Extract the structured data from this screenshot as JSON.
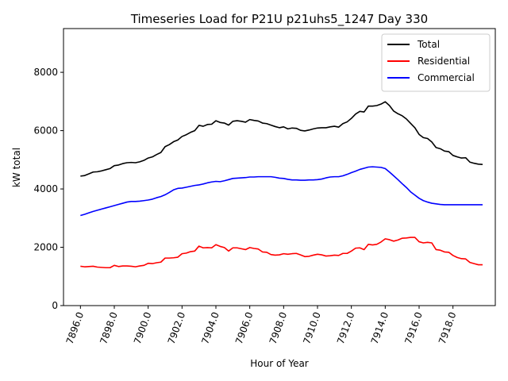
{
  "chart_data": {
    "type": "line",
    "title": "Timeseries Load for P21U p21uhs5_1247  Day 330",
    "xlabel": "Hour of Year",
    "ylabel": "kW total",
    "xlim": [
      7895.0,
      7920.5
    ],
    "ylim": [
      0,
      9500
    ],
    "x_ticks": [
      7896.0,
      7898.0,
      7900.0,
      7902.0,
      7904.0,
      7906.0,
      7908.0,
      7910.0,
      7912.0,
      7914.0,
      7916.0,
      7918.0
    ],
    "x_tick_labels": [
      "7896.0",
      "7898.0",
      "7900.0",
      "7902.0",
      "7904.0",
      "7906.0",
      "7908.0",
      "7910.0",
      "7912.0",
      "7914.0",
      "7916.0",
      "7918.0"
    ],
    "y_ticks": [
      0,
      2000,
      4000,
      6000,
      8000
    ],
    "y_tick_labels": [
      "0",
      "2000",
      "4000",
      "6000",
      "8000"
    ],
    "legend_position": "top-right",
    "x": [
      7896.0,
      7896.25,
      7896.5,
      7896.75,
      7897.0,
      7897.25,
      7897.5,
      7897.75,
      7898.0,
      7898.25,
      7898.5,
      7898.75,
      7899.0,
      7899.25,
      7899.5,
      7899.75,
      7900.0,
      7900.25,
      7900.5,
      7900.75,
      7901.0,
      7901.25,
      7901.5,
      7901.75,
      7902.0,
      7902.25,
      7902.5,
      7902.75,
      7903.0,
      7903.25,
      7903.5,
      7903.75,
      7904.0,
      7904.25,
      7904.5,
      7904.75,
      7905.0,
      7905.25,
      7905.5,
      7905.75,
      7906.0,
      7906.25,
      7906.5,
      7906.75,
      7907.0,
      7907.25,
      7907.5,
      7907.75,
      7908.0,
      7908.25,
      7908.5,
      7908.75,
      7909.0,
      7909.25,
      7909.5,
      7909.75,
      7910.0,
      7910.25,
      7910.5,
      7910.75,
      7911.0,
      7911.25,
      7911.5,
      7911.75,
      7912.0,
      7912.25,
      7912.5,
      7912.75,
      7913.0,
      7913.25,
      7913.5,
      7913.75,
      7914.0,
      7914.25,
      7914.5,
      7914.75,
      7915.0,
      7915.25,
      7915.5,
      7915.75,
      7916.0,
      7916.25,
      7916.5,
      7916.75,
      7917.0,
      7917.25,
      7917.5,
      7917.75,
      7918.0,
      7918.25,
      7918.5,
      7918.75,
      7919.0,
      7919.25,
      7919.5,
      7919.75
    ],
    "series": [
      {
        "name": "Total",
        "color": "#000000",
        "values": [
          4440,
          4460,
          4520,
          4580,
          4590,
          4620,
          4660,
          4700,
          4800,
          4820,
          4870,
          4900,
          4910,
          4900,
          4930,
          4980,
          5060,
          5100,
          5180,
          5250,
          5450,
          5520,
          5620,
          5680,
          5800,
          5860,
          5940,
          6000,
          6180,
          6150,
          6210,
          6220,
          6340,
          6280,
          6260,
          6190,
          6320,
          6340,
          6320,
          6290,
          6380,
          6350,
          6330,
          6260,
          6240,
          6190,
          6140,
          6100,
          6130,
          6060,
          6090,
          6080,
          6010,
          5990,
          6020,
          6060,
          6090,
          6100,
          6100,
          6130,
          6150,
          6120,
          6240,
          6300,
          6420,
          6570,
          6660,
          6640,
          6840,
          6840,
          6860,
          6910,
          6990,
          6860,
          6670,
          6580,
          6510,
          6400,
          6250,
          6100,
          5870,
          5760,
          5730,
          5610,
          5420,
          5380,
          5300,
          5280,
          5150,
          5100,
          5060,
          5070,
          4920,
          4880,
          4850,
          4840
        ]
      },
      {
        "name": "Residential",
        "color": "#ff0000",
        "values": [
          1350,
          1330,
          1340,
          1350,
          1320,
          1310,
          1300,
          1300,
          1380,
          1340,
          1360,
          1360,
          1350,
          1330,
          1360,
          1380,
          1450,
          1440,
          1470,
          1490,
          1630,
          1630,
          1640,
          1660,
          1780,
          1800,
          1850,
          1870,
          2040,
          1980,
          1990,
          1980,
          2090,
          2030,
          1990,
          1870,
          1980,
          1980,
          1950,
          1920,
          1990,
          1960,
          1940,
          1840,
          1830,
          1750,
          1730,
          1740,
          1780,
          1760,
          1780,
          1790,
          1740,
          1680,
          1690,
          1730,
          1760,
          1740,
          1700,
          1710,
          1730,
          1720,
          1790,
          1790,
          1870,
          1970,
          1980,
          1920,
          2100,
          2080,
          2100,
          2180,
          2290,
          2260,
          2210,
          2250,
          2310,
          2320,
          2340,
          2340,
          2190,
          2150,
          2170,
          2150,
          1920,
          1900,
          1840,
          1830,
          1720,
          1650,
          1610,
          1600,
          1480,
          1440,
          1400,
          1400
        ]
      },
      {
        "name": "Commercial",
        "color": "#0000ff",
        "values": [
          3090,
          3130,
          3180,
          3230,
          3270,
          3310,
          3350,
          3390,
          3430,
          3470,
          3510,
          3550,
          3570,
          3570,
          3580,
          3600,
          3620,
          3650,
          3700,
          3740,
          3800,
          3880,
          3970,
          4020,
          4030,
          4060,
          4090,
          4120,
          4140,
          4170,
          4210,
          4240,
          4260,
          4250,
          4280,
          4320,
          4360,
          4370,
          4380,
          4390,
          4410,
          4410,
          4420,
          4420,
          4420,
          4420,
          4400,
          4370,
          4360,
          4330,
          4310,
          4310,
          4300,
          4300,
          4310,
          4310,
          4320,
          4340,
          4380,
          4410,
          4420,
          4420,
          4450,
          4500,
          4560,
          4610,
          4670,
          4710,
          4750,
          4760,
          4750,
          4740,
          4700,
          4580,
          4450,
          4320,
          4180,
          4050,
          3900,
          3790,
          3680,
          3600,
          3550,
          3510,
          3490,
          3470,
          3460,
          3460,
          3460,
          3460,
          3460,
          3460,
          3460,
          3460,
          3460,
          3460
        ]
      }
    ]
  }
}
